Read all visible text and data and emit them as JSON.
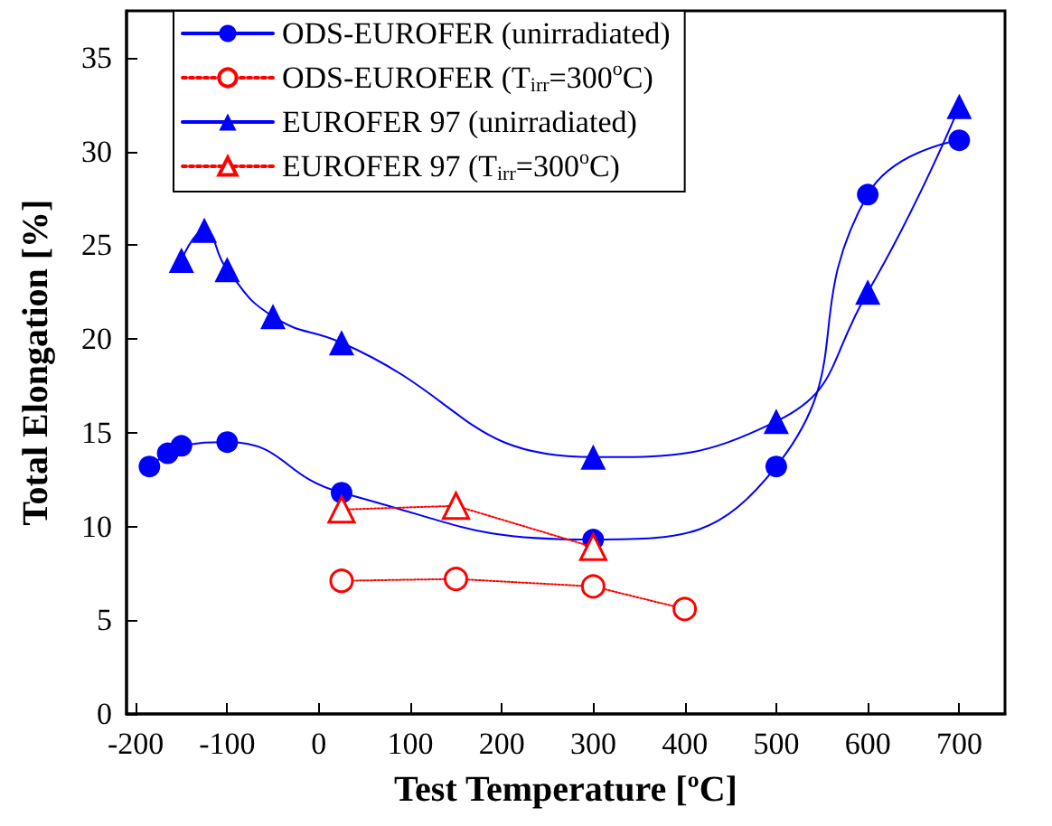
{
  "chart_data": {
    "type": "line",
    "xlabel": "Test Temperature [ºC]",
    "ylabel": "Total Elongation [%]",
    "xlim": [
      -210,
      750
    ],
    "xticks": [
      -200,
      -100,
      0,
      100,
      200,
      300,
      400,
      500,
      600,
      700
    ],
    "ylim": [
      0,
      37.5
    ],
    "yticks": [
      0,
      5,
      10,
      15,
      20,
      25,
      30,
      35
    ],
    "grid": false,
    "legend": "top left",
    "series": [
      {
        "name": "ODS-EUROFER (unirradiated)",
        "color": "#0000ff",
        "marker": "circle",
        "line_style": "solid",
        "x": [
          -185,
          -165,
          -150,
          -100,
          25,
          300,
          500,
          600,
          700
        ],
        "values": [
          13.2,
          13.9,
          14.3,
          14.5,
          11.8,
          9.3,
          13.2,
          27.7,
          30.6
        ]
      },
      {
        "name": "ODS-EUROFER (T$_{irr}$=300$^{o}$C)",
        "color": "#ff0000",
        "marker": "circle",
        "line_style": "dotted",
        "x": [
          25,
          150,
          300,
          400
        ],
        "values": [
          7.1,
          7.2,
          6.8,
          5.6
        ]
      },
      {
        "name": "EUROFER 97 (unirradiated)",
        "color": "#0000ff",
        "marker": "triangle",
        "line_style": "solid",
        "x": [
          -150,
          -125,
          -100,
          -50,
          25,
          300,
          500,
          600,
          700
        ],
        "values": [
          24.2,
          25.8,
          23.7,
          21.2,
          19.8,
          13.7,
          15.6,
          22.5,
          32.4
        ]
      },
      {
        "name": "EUROFER 97 (T$_{irr}$=300$^{o}$C)",
        "color": "#ff0000",
        "marker": "triangle",
        "line_style": "dotted",
        "x": [
          25,
          150,
          300
        ],
        "values": [
          10.9,
          11.1,
          8.9
        ]
      }
    ]
  }
}
